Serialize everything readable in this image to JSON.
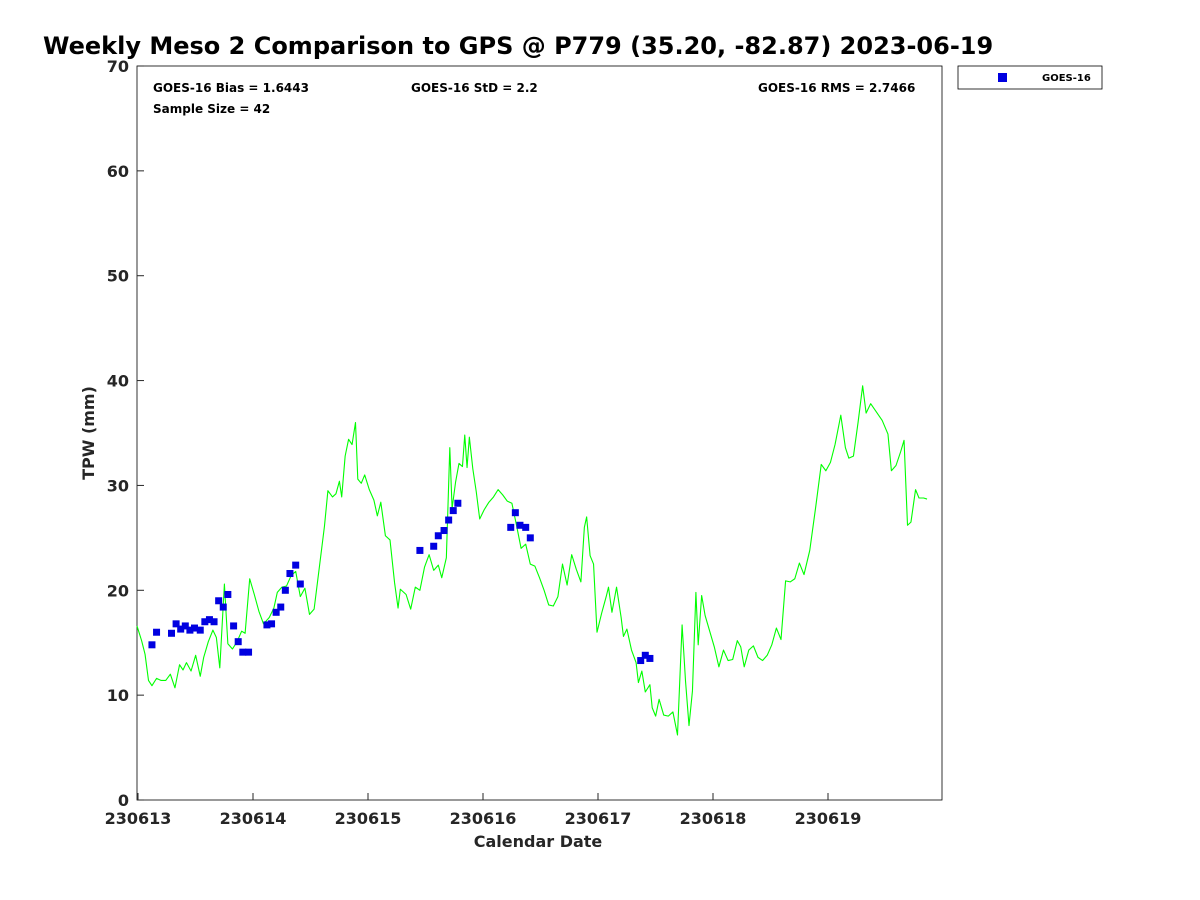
{
  "chart_data": {
    "type": "scatter",
    "title": "Weekly Meso 2 Comparison to GPS @ P779 (35.20, -82.87) 2023-06-19",
    "xlabel": "Calendar Date",
    "ylabel": "TPW (mm)",
    "x_ticks": [
      "230613",
      "230614",
      "230615",
      "230616",
      "230617",
      "230618",
      "230619"
    ],
    "xlim_days": [
      230613,
      230620
    ],
    "ylim": [
      0,
      70
    ],
    "y_ticks": [
      0,
      10,
      20,
      30,
      40,
      50,
      60,
      70
    ],
    "grid": false,
    "legend_position": "top-right",
    "stats": {
      "bias": "GOES-16 Bias = 1.6443",
      "std": "GOES-16 StD = 2.2",
      "rms": "GOES-16 RMS = 2.7466",
      "sample_size": "Sample Size = 42"
    },
    "series": [
      {
        "name": "GOES-16",
        "kind": "scatter",
        "color": "#0000e0",
        "marker": "square",
        "points": [
          [
            230613.13,
            14.8
          ],
          [
            230613.17,
            16.0
          ],
          [
            230613.3,
            15.9
          ],
          [
            230613.34,
            16.8
          ],
          [
            230613.38,
            16.3
          ],
          [
            230613.42,
            16.6
          ],
          [
            230613.46,
            16.2
          ],
          [
            230613.5,
            16.4
          ],
          [
            230613.55,
            16.2
          ],
          [
            230613.59,
            17.0
          ],
          [
            230613.63,
            17.2
          ],
          [
            230613.67,
            17.0
          ],
          [
            230613.71,
            19.0
          ],
          [
            230613.75,
            18.4
          ],
          [
            230613.79,
            19.6
          ],
          [
            230613.84,
            16.6
          ],
          [
            230613.88,
            15.1
          ],
          [
            230613.92,
            14.1
          ],
          [
            230613.97,
            14.1
          ],
          [
            230614.13,
            16.7
          ],
          [
            230614.17,
            16.8
          ],
          [
            230614.21,
            17.9
          ],
          [
            230614.25,
            18.4
          ],
          [
            230614.29,
            20.0
          ],
          [
            230614.33,
            21.6
          ],
          [
            230614.38,
            22.4
          ],
          [
            230614.42,
            20.6
          ],
          [
            230615.46,
            23.8
          ],
          [
            230615.58,
            24.2
          ],
          [
            230615.62,
            25.2
          ],
          [
            230615.67,
            25.7
          ],
          [
            230615.71,
            26.7
          ],
          [
            230615.75,
            27.6
          ],
          [
            230615.79,
            28.3
          ],
          [
            230616.25,
            26.0
          ],
          [
            230616.29,
            27.4
          ],
          [
            230616.33,
            26.2
          ],
          [
            230616.38,
            26.0
          ],
          [
            230616.42,
            25.0
          ],
          [
            230617.38,
            13.3
          ],
          [
            230617.42,
            13.8
          ],
          [
            230617.46,
            13.5
          ]
        ]
      },
      {
        "name": "GPS",
        "kind": "line",
        "color": "#00ff00",
        "points": [
          [
            230613.0,
            16.6
          ],
          [
            230613.04,
            15.2
          ],
          [
            230613.07,
            13.9
          ],
          [
            230613.1,
            11.4
          ],
          [
            230613.13,
            10.9
          ],
          [
            230613.17,
            11.6
          ],
          [
            230613.21,
            11.4
          ],
          [
            230613.25,
            11.4
          ],
          [
            230613.29,
            12.0
          ],
          [
            230613.33,
            10.7
          ],
          [
            230613.37,
            12.9
          ],
          [
            230613.4,
            12.4
          ],
          [
            230613.43,
            13.1
          ],
          [
            230613.47,
            12.3
          ],
          [
            230613.51,
            13.8
          ],
          [
            230613.55,
            11.8
          ],
          [
            230613.58,
            13.6
          ],
          [
            230613.62,
            15.1
          ],
          [
            230613.66,
            16.2
          ],
          [
            230613.69,
            15.5
          ],
          [
            230613.72,
            12.6
          ],
          [
            230613.76,
            20.6
          ],
          [
            230613.79,
            14.9
          ],
          [
            230613.83,
            14.4
          ],
          [
            230613.87,
            15.1
          ],
          [
            230613.91,
            16.1
          ],
          [
            230613.94,
            15.9
          ],
          [
            230613.98,
            21.1
          ],
          [
            230614.02,
            19.6
          ],
          [
            230614.06,
            18.0
          ],
          [
            230614.1,
            16.8
          ],
          [
            230614.15,
            17.4
          ],
          [
            230614.19,
            18.3
          ],
          [
            230614.22,
            19.8
          ],
          [
            230614.26,
            20.3
          ],
          [
            230614.3,
            20.4
          ],
          [
            230614.34,
            21.4
          ],
          [
            230614.38,
            21.8
          ],
          [
            230614.42,
            19.4
          ],
          [
            230614.46,
            20.2
          ],
          [
            230614.5,
            17.7
          ],
          [
            230614.54,
            18.2
          ],
          [
            230614.58,
            21.7
          ],
          [
            230614.63,
            26.1
          ],
          [
            230614.66,
            29.5
          ],
          [
            230614.7,
            28.9
          ],
          [
            230614.73,
            29.2
          ],
          [
            230614.76,
            30.4
          ],
          [
            230614.78,
            28.9
          ],
          [
            230614.81,
            32.8
          ],
          [
            230614.84,
            34.4
          ],
          [
            230614.87,
            33.9
          ],
          [
            230614.9,
            36.0
          ],
          [
            230614.92,
            30.6
          ],
          [
            230614.95,
            30.2
          ],
          [
            230614.98,
            31.0
          ],
          [
            230615.02,
            29.6
          ],
          [
            230615.06,
            28.6
          ],
          [
            230615.09,
            27.1
          ],
          [
            230615.12,
            28.4
          ],
          [
            230615.16,
            25.2
          ],
          [
            230615.2,
            24.8
          ],
          [
            230615.24,
            20.7
          ],
          [
            230615.27,
            18.3
          ],
          [
            230615.29,
            20.1
          ],
          [
            230615.34,
            19.6
          ],
          [
            230615.38,
            18.2
          ],
          [
            230615.42,
            20.3
          ],
          [
            230615.46,
            20.0
          ],
          [
            230615.5,
            22.2
          ],
          [
            230615.54,
            23.4
          ],
          [
            230615.58,
            21.9
          ],
          [
            230615.62,
            22.4
          ],
          [
            230615.65,
            21.2
          ],
          [
            230615.69,
            23.1
          ],
          [
            230615.72,
            33.6
          ],
          [
            230615.74,
            27.8
          ],
          [
            230615.77,
            30.3
          ],
          [
            230615.8,
            32.1
          ],
          [
            230615.83,
            31.8
          ],
          [
            230615.85,
            34.8
          ],
          [
            230615.87,
            31.7
          ],
          [
            230615.89,
            34.6
          ],
          [
            230615.92,
            31.6
          ],
          [
            230615.95,
            29.4
          ],
          [
            230615.98,
            26.8
          ],
          [
            230616.02,
            27.7
          ],
          [
            230616.06,
            28.4
          ],
          [
            230616.1,
            28.9
          ],
          [
            230616.14,
            29.6
          ],
          [
            230616.18,
            29.1
          ],
          [
            230616.22,
            28.5
          ],
          [
            230616.26,
            28.3
          ],
          [
            230616.3,
            26.2
          ],
          [
            230616.34,
            24.0
          ],
          [
            230616.38,
            24.4
          ],
          [
            230616.42,
            22.5
          ],
          [
            230616.46,
            22.3
          ],
          [
            230616.5,
            21.2
          ],
          [
            230616.54,
            20.0
          ],
          [
            230616.58,
            18.6
          ],
          [
            230616.62,
            18.5
          ],
          [
            230616.66,
            19.4
          ],
          [
            230616.7,
            22.5
          ],
          [
            230616.74,
            20.5
          ],
          [
            230616.78,
            23.4
          ],
          [
            230616.82,
            22.0
          ],
          [
            230616.86,
            20.8
          ],
          [
            230616.89,
            26.0
          ],
          [
            230616.91,
            27.0
          ],
          [
            230616.94,
            23.3
          ],
          [
            230616.97,
            22.5
          ],
          [
            230617.0,
            16.0
          ],
          [
            230617.04,
            17.8
          ],
          [
            230617.08,
            19.4
          ],
          [
            230617.1,
            20.3
          ],
          [
            230617.13,
            17.9
          ],
          [
            230617.17,
            20.3
          ],
          [
            230617.21,
            17.4
          ],
          [
            230617.23,
            15.6
          ],
          [
            230617.26,
            16.3
          ],
          [
            230617.3,
            14.3
          ],
          [
            230617.34,
            13.1
          ],
          [
            230617.36,
            11.2
          ],
          [
            230617.39,
            12.3
          ],
          [
            230617.42,
            10.3
          ],
          [
            230617.46,
            11.0
          ],
          [
            230617.48,
            8.8
          ],
          [
            230617.51,
            8.0
          ],
          [
            230617.54,
            9.6
          ],
          [
            230617.58,
            8.1
          ],
          [
            230617.62,
            8.0
          ],
          [
            230617.66,
            8.4
          ],
          [
            230617.7,
            6.2
          ],
          [
            230617.74,
            16.7
          ],
          [
            230617.77,
            11.3
          ],
          [
            230617.8,
            7.1
          ],
          [
            230617.83,
            10.4
          ],
          [
            230617.86,
            19.8
          ],
          [
            230617.88,
            14.8
          ],
          [
            230617.91,
            19.5
          ],
          [
            230617.94,
            17.6
          ],
          [
            230617.98,
            16.1
          ],
          [
            230618.02,
            14.6
          ],
          [
            230618.06,
            12.7
          ],
          [
            230618.1,
            14.3
          ],
          [
            230618.14,
            13.3
          ],
          [
            230618.18,
            13.4
          ],
          [
            230618.22,
            15.2
          ],
          [
            230618.25,
            14.6
          ],
          [
            230618.28,
            12.7
          ],
          [
            230618.32,
            14.3
          ],
          [
            230618.36,
            14.7
          ],
          [
            230618.4,
            13.6
          ],
          [
            230618.44,
            13.3
          ],
          [
            230618.48,
            13.8
          ],
          [
            230618.52,
            14.8
          ],
          [
            230618.56,
            16.4
          ],
          [
            230618.6,
            15.3
          ],
          [
            230618.64,
            20.9
          ],
          [
            230618.68,
            20.8
          ],
          [
            230618.72,
            21.1
          ],
          [
            230618.76,
            22.6
          ],
          [
            230618.8,
            21.5
          ],
          [
            230618.85,
            23.8
          ],
          [
            230618.9,
            27.8
          ],
          [
            230618.95,
            32.0
          ],
          [
            230618.99,
            31.4
          ],
          [
            230619.03,
            32.2
          ],
          [
            230619.07,
            33.9
          ],
          [
            230619.12,
            36.7
          ],
          [
            230619.16,
            33.6
          ],
          [
            230619.19,
            32.6
          ],
          [
            230619.23,
            32.8
          ],
          [
            230619.27,
            36.0
          ],
          [
            230619.31,
            39.5
          ],
          [
            230619.34,
            36.9
          ],
          [
            230619.38,
            37.8
          ],
          [
            230619.43,
            37.0
          ],
          [
            230619.48,
            36.2
          ],
          [
            230619.53,
            34.9
          ],
          [
            230619.56,
            31.4
          ],
          [
            230619.6,
            31.9
          ],
          [
            230619.64,
            33.2
          ],
          [
            230619.67,
            34.3
          ],
          [
            230619.7,
            26.2
          ],
          [
            230619.73,
            26.5
          ],
          [
            230619.77,
            29.6
          ],
          [
            230619.8,
            28.8
          ],
          [
            230619.84,
            28.8
          ],
          [
            230619.87,
            28.7
          ]
        ]
      }
    ]
  }
}
